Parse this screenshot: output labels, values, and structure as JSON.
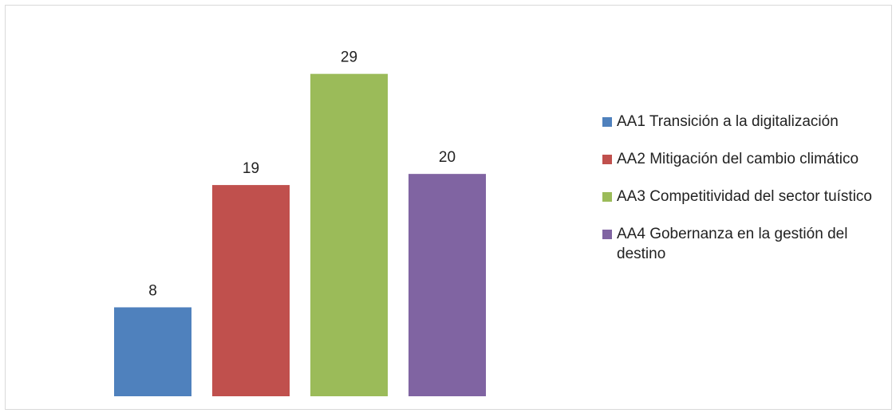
{
  "chart_data": {
    "type": "bar",
    "categories": [
      "AA1 Transición a la digitalización",
      "AA2 Mitigación del cambio climático",
      "AA3 Competitividad del sector tuístico",
      "AA4 Gobernanza en la gestión del destino"
    ],
    "values": [
      8,
      19,
      29,
      20
    ],
    "colors": [
      "#4f81bd",
      "#c0504d",
      "#9bbb59",
      "#8064a2"
    ],
    "ylim": [
      0,
      35
    ],
    "grid": false,
    "axes_visible": false,
    "data_labels": true,
    "legend_position": "right",
    "legend": [
      {
        "label": "AA1 Transición a la digitalización",
        "color": "#4f81bd"
      },
      {
        "label": "AA2 Mitigación del cambio climático",
        "color": "#c0504d"
      },
      {
        "label": "AA3 Competitividad del sector tuístico",
        "color": "#9bbb59"
      },
      {
        "label": "AA4 Gobernanza en la gestión del destino",
        "color": "#8064a2"
      }
    ]
  }
}
